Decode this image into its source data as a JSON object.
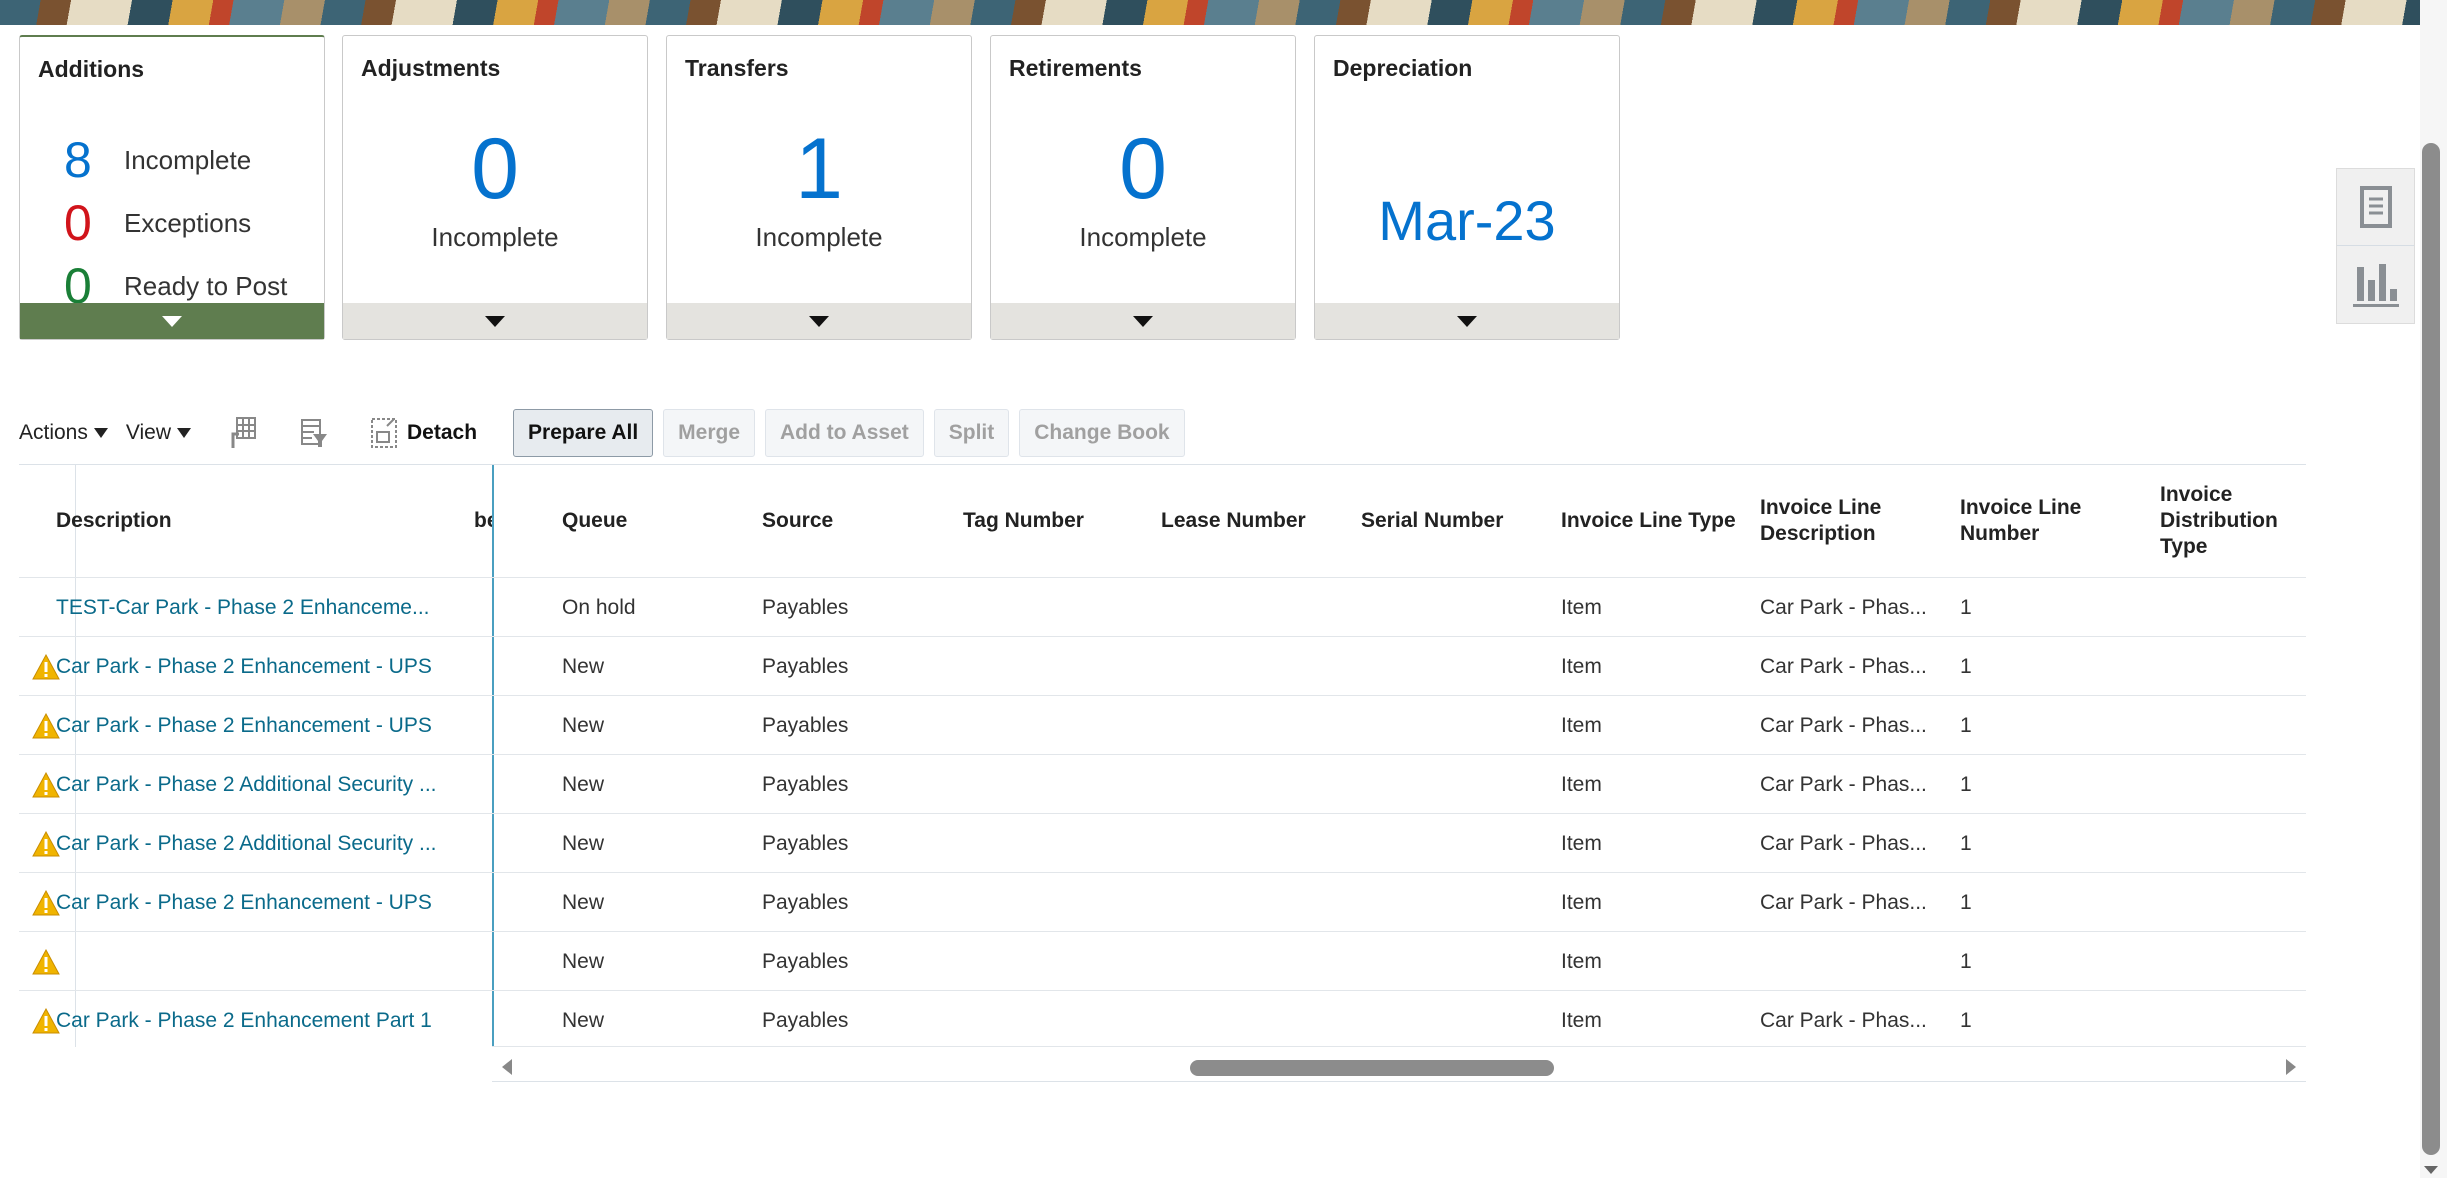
{
  "cards": {
    "additions": {
      "title": "Additions",
      "rows": [
        {
          "value": "8",
          "label": "Incomplete",
          "color": "#0572ce"
        },
        {
          "value": "0",
          "label": "Exceptions",
          "color": "#d1141b"
        },
        {
          "value": "0",
          "label": "Ready to Post",
          "color": "#1a7f37"
        }
      ]
    },
    "adjustments": {
      "title": "Adjustments",
      "value": "0",
      "label": "Incomplete"
    },
    "transfers": {
      "title": "Transfers",
      "value": "1",
      "label": "Incomplete"
    },
    "retirements": {
      "title": "Retirements",
      "value": "0",
      "label": "Incomplete"
    },
    "depreciation": {
      "title": "Depreciation",
      "value": "Mar-23"
    }
  },
  "toolbar": {
    "actions": "Actions",
    "view": "View",
    "detach": "Detach",
    "prepare_all": "Prepare All",
    "merge": "Merge",
    "add_to_asset": "Add to Asset",
    "split": "Split",
    "change_book": "Change Book"
  },
  "table": {
    "headers": [
      "Description",
      "ber",
      "Queue",
      "Source",
      "Tag Number",
      "Lease Number",
      "Serial Number",
      "Invoice Line Type",
      "Invoice Line Description",
      "Invoice Line Number",
      "Invoice Distribution Type"
    ],
    "rows": [
      {
        "warn": false,
        "description": "TEST-Car Park - Phase 2 Enhanceme...",
        "queue": "On hold",
        "source": "Payables",
        "line_type": "Item",
        "line_desc": "Car Park - Phas...",
        "line_num": "1"
      },
      {
        "warn": true,
        "description": "Car Park - Phase 2 Enhancement - UPS",
        "queue": "New",
        "source": "Payables",
        "line_type": "Item",
        "line_desc": "Car Park - Phas...",
        "line_num": "1"
      },
      {
        "warn": true,
        "description": "Car Park - Phase 2 Enhancement - UPS",
        "queue": "New",
        "source": "Payables",
        "line_type": "Item",
        "line_desc": "Car Park - Phas...",
        "line_num": "1"
      },
      {
        "warn": true,
        "description": "Car Park - Phase 2 Additional Security ...",
        "queue": "New",
        "source": "Payables",
        "line_type": "Item",
        "line_desc": "Car Park - Phas...",
        "line_num": "1"
      },
      {
        "warn": true,
        "description": "Car Park - Phase 2 Additional Security ...",
        "queue": "New",
        "source": "Payables",
        "line_type": "Item",
        "line_desc": "Car Park - Phas...",
        "line_num": "1"
      },
      {
        "warn": true,
        "description": "Car Park - Phase 2 Enhancement - UPS",
        "queue": "New",
        "source": "Payables",
        "line_type": "Item",
        "line_desc": "Car Park - Phas...",
        "line_num": "1"
      },
      {
        "warn": true,
        "description": "",
        "queue": "New",
        "source": "Payables",
        "line_type": "Item",
        "line_desc": "",
        "line_num": "1"
      },
      {
        "warn": true,
        "description": "Car Park - Phase 2 Enhancement Part 1",
        "queue": "New",
        "source": "Payables",
        "line_type": "Item",
        "line_desc": "Car Park - Phas...",
        "line_num": "1"
      }
    ]
  },
  "colors": {
    "accent": "#0572ce",
    "selected_card": "#5f7d4f",
    "link": "#0a6a8a",
    "warning": "#f0b400"
  }
}
